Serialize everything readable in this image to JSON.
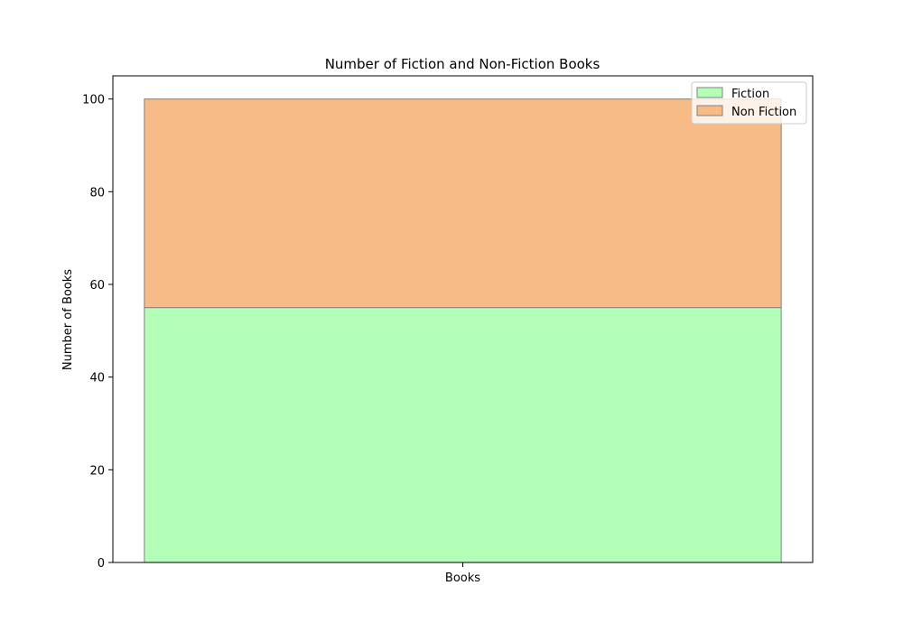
{
  "chart_data": {
    "type": "bar",
    "stacked": true,
    "title": "Number of Fiction and Non-Fiction Books",
    "xlabel": "",
    "ylabel": "Number of Books",
    "categories": [
      "Books"
    ],
    "ylim": [
      0,
      105
    ],
    "yticks": [
      0,
      20,
      40,
      60,
      80,
      100
    ],
    "grid": false,
    "legend_position": "top-right",
    "series": [
      {
        "name": "Fiction",
        "values": [
          55
        ],
        "color": "#b3ffb8"
      },
      {
        "name": "Non Fiction",
        "values": [
          45
        ],
        "color": "#f7bb88"
      }
    ],
    "edge_color": "#808080"
  }
}
